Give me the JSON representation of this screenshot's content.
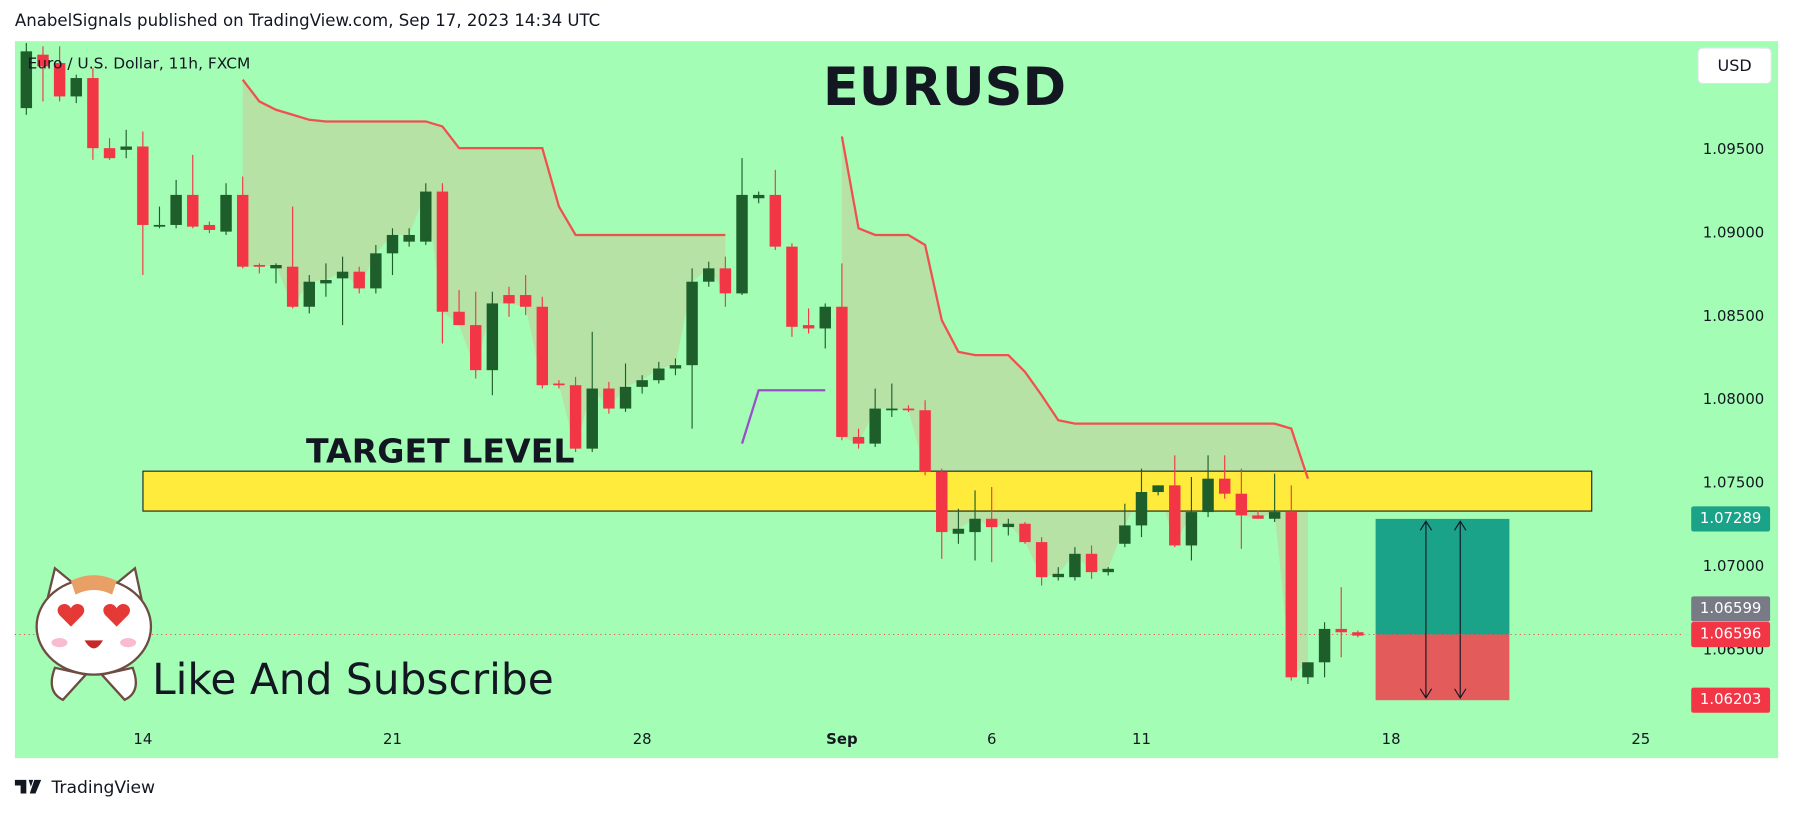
{
  "header": "AnabelSignals published on TradingView.com, Sep 17, 2023 14:34 UTC",
  "footer": "TradingView",
  "currency_button": "USD",
  "chart_data": {
    "type": "candlestick",
    "title": "EURUSD",
    "subtitle": "Euro / U.S. Dollar, 11h, FXCM",
    "annotation": "Like And Subscribe",
    "up_color": "#1e5e2b",
    "down_color": "#f23645",
    "categories": [
      null,
      null,
      null,
      null,
      null,
      null,
      null,
      "14",
      null,
      null,
      null,
      null,
      null,
      null,
      null,
      null,
      null,
      null,
      null,
      null,
      null,
      null,
      "21",
      null,
      null,
      null,
      null,
      null,
      null,
      null,
      null,
      null,
      null,
      null,
      null,
      null,
      null,
      "28",
      null,
      null,
      null,
      null,
      null,
      null,
      null,
      null,
      null,
      null,
      null,
      "Sep",
      null,
      null,
      null,
      null,
      null,
      null,
      null,
      null,
      "6",
      null,
      null,
      null,
      null,
      null,
      null,
      null,
      null,
      "11",
      null,
      null,
      null,
      null,
      null,
      null,
      null,
      null,
      null,
      null,
      null,
      null,
      null,
      null,
      "18",
      null,
      null,
      null,
      null,
      null,
      null,
      null,
      null,
      null,
      null,
      null,
      null,
      null,
      null,
      "25"
    ],
    "open": [
      1.0975,
      1.1007,
      1.1002,
      1.0982,
      1.0993,
      1.0951,
      1.095,
      1.0952,
      1.0904,
      1.0905,
      1.0923,
      1.0905,
      1.0901,
      1.0923,
      1.0881,
      1.0879,
      1.088,
      1.0856,
      1.087,
      1.0873,
      1.0877,
      1.0867,
      1.0888,
      1.0895,
      1.0895,
      1.0925,
      1.0853,
      1.0845,
      1.0818,
      1.0863,
      1.0863,
      1.0856,
      1.081,
      1.0809,
      1.0771,
      1.0807,
      1.0795,
      1.0808,
      1.0812,
      1.0819,
      1.0821,
      1.0871,
      1.0879,
      1.0864,
      1.0921,
      1.0923,
      1.0892,
      1.0845,
      1.0843,
      1.0856,
      1.0778,
      1.0774,
      1.0794,
      1.0795,
      1.0794,
      1.0757,
      1.072,
      1.0721,
      1.0729,
      1.0724,
      1.0726,
      1.0715,
      1.0694,
      1.0694,
      1.0708,
      1.0697,
      1.0714,
      1.0725,
      1.0745,
      1.0749,
      1.0713,
      1.0733,
      1.0753,
      1.0744,
      1.0731,
      1.0729,
      1.0733,
      1.0634,
      1.0643,
      1.0663,
      1.0661,
      null,
      null,
      null,
      null,
      null,
      null,
      null,
      null,
      null,
      null,
      null,
      null,
      null,
      null,
      null,
      null,
      null
    ],
    "high": [
      1.1014,
      1.1012,
      1.1012,
      1.0995,
      1.0999,
      1.0957,
      1.0962,
      1.0961,
      1.0916,
      1.0932,
      1.0947,
      1.0907,
      1.093,
      1.0934,
      1.0882,
      1.0882,
      1.0916,
      1.0875,
      1.0882,
      1.0886,
      1.088,
      1.0893,
      1.0903,
      1.0903,
      1.093,
      1.093,
      1.0866,
      1.0865,
      1.0865,
      1.0868,
      1.0875,
      1.0862,
      1.0812,
      1.0814,
      1.0841,
      1.0811,
      1.0822,
      1.0815,
      1.0823,
      1.0825,
      1.0879,
      1.0883,
      1.0886,
      1.0945,
      1.0925,
      1.0938,
      1.0894,
      1.0855,
      1.0858,
      1.0882,
      1.0783,
      1.0807,
      1.081,
      1.0797,
      1.08,
      1.0759,
      1.0735,
      1.0746,
      1.0748,
      1.0729,
      1.0727,
      1.0718,
      1.07,
      1.0712,
      1.0713,
      1.07,
      1.0738,
      1.0759,
      1.0749,
      1.0767,
      1.0754,
      1.0767,
      1.0767,
      1.0759,
      1.0734,
      1.0756,
      1.0749,
      1.0643,
      1.0667,
      1.0688,
      1.0662,
      null,
      null,
      null,
      null,
      null,
      null,
      null,
      null,
      null,
      null,
      null,
      null,
      null,
      null,
      null,
      null,
      null
    ],
    "low": [
      1.0971,
      1.0979,
      1.0979,
      1.0978,
      1.0944,
      1.0944,
      1.0945,
      1.0875,
      1.0903,
      1.0903,
      1.0903,
      1.09,
      1.0899,
      1.0879,
      1.0876,
      1.087,
      1.0855,
      1.0852,
      1.0862,
      1.0845,
      1.0864,
      1.0864,
      1.0875,
      1.0892,
      1.0893,
      1.0834,
      1.0845,
      1.0813,
      1.0803,
      1.085,
      1.0851,
      1.0807,
      1.0807,
      1.0769,
      1.0769,
      1.0792,
      1.0793,
      1.0804,
      1.081,
      1.0815,
      1.0783,
      1.0868,
      1.0856,
      1.0863,
      1.0918,
      1.089,
      1.0838,
      1.084,
      1.0831,
      1.0776,
      1.0771,
      1.0772,
      1.079,
      1.0793,
      1.0755,
      1.0705,
      1.0714,
      1.0704,
      1.0703,
      1.0719,
      1.0714,
      1.0689,
      1.0692,
      1.0692,
      1.0693,
      1.0695,
      1.0712,
      1.0718,
      1.0743,
      1.0712,
      1.0704,
      1.073,
      1.0741,
      1.0711,
      1.0729,
      1.0727,
      1.0632,
      1.063,
      1.0634,
      1.0646,
      1.0658,
      null,
      null,
      null,
      null,
      null,
      null,
      null,
      null,
      null,
      null,
      null,
      null,
      null,
      null,
      null,
      null,
      null
    ],
    "close": [
      1.1009,
      1.1,
      1.0982,
      1.0993,
      1.0951,
      1.0945,
      1.0952,
      1.0905,
      1.0905,
      1.0923,
      1.0904,
      1.0902,
      1.0923,
      1.088,
      1.088,
      1.0881,
      1.0856,
      1.0871,
      1.0872,
      1.0877,
      1.0867,
      1.0888,
      1.0899,
      1.0899,
      1.0925,
      1.0853,
      1.0845,
      1.0818,
      1.0858,
      1.0858,
      1.0856,
      1.0809,
      1.0809,
      1.0771,
      1.0807,
      1.0795,
      1.0808,
      1.0812,
      1.0819,
      1.0821,
      1.0871,
      1.0879,
      1.0864,
      1.0923,
      1.0923,
      1.0892,
      1.0844,
      1.0843,
      1.0856,
      1.0778,
      1.0774,
      1.0795,
      1.0795,
      1.0794,
      1.0757,
      1.0721,
      1.0723,
      1.0729,
      1.0724,
      1.0726,
      1.0715,
      1.0694,
      1.0696,
      1.0708,
      1.0697,
      1.0699,
      1.0725,
      1.0745,
      1.0749,
      1.0713,
      1.0733,
      1.0753,
      1.0744,
      1.0731,
      1.0729,
      1.0733,
      1.0634,
      1.0643,
      1.0663,
      1.0661,
      1.0659,
      null,
      null,
      null,
      null,
      null,
      null,
      null,
      null,
      null,
      null,
      null,
      null,
      null,
      null,
      null,
      null,
      null
    ],
    "trail": {
      "color": "#f05050",
      "values": [
        null,
        null,
        null,
        null,
        null,
        null,
        null,
        null,
        null,
        null,
        null,
        null,
        null,
        1.0992,
        1.0979,
        1.0974,
        1.0971,
        1.0968,
        1.0967,
        1.0967,
        1.0967,
        1.0967,
        1.0967,
        1.0967,
        1.0967,
        1.0964,
        1.0951,
        1.0951,
        1.0951,
        1.0951,
        1.0951,
        1.0951,
        1.0916,
        1.0899,
        1.0899,
        1.0899,
        1.0899,
        1.0899,
        1.0899,
        1.0899,
        1.0899,
        1.0899,
        1.0899,
        null,
        null,
        null,
        null,
        null,
        null,
        1.0958,
        1.0903,
        1.0899,
        1.0899,
        1.0899,
        1.0893,
        1.0848,
        1.0829,
        1.0827,
        1.0827,
        1.0827,
        1.0817,
        1.0803,
        1.0788,
        1.0786,
        1.0786,
        1.0786,
        1.0786,
        1.0786,
        1.0786,
        1.0786,
        1.0786,
        1.0786,
        1.0786,
        1.0786,
        1.0786,
        1.0786,
        1.0783,
        1.0753,
        null,
        null,
        null,
        null,
        null,
        null,
        null,
        null,
        null,
        null,
        null,
        null,
        null,
        null,
        null,
        null,
        null,
        null,
        null,
        null
      ]
    },
    "signal": {
      "color": "#9c4dcc",
      "values": [
        null,
        null,
        null,
        null,
        null,
        null,
        null,
        null,
        null,
        null,
        null,
        null,
        null,
        null,
        null,
        null,
        null,
        null,
        null,
        null,
        null,
        null,
        null,
        null,
        null,
        null,
        null,
        null,
        null,
        null,
        null,
        null,
        null,
        null,
        null,
        null,
        null,
        null,
        null,
        null,
        null,
        null,
        null,
        1.0774,
        1.0806,
        1.0806,
        1.0806,
        1.0806,
        1.0806,
        null,
        null,
        null,
        null,
        null,
        null,
        null,
        null,
        null,
        null,
        null,
        null,
        null,
        null,
        null,
        null,
        null,
        null,
        null,
        null,
        null,
        null,
        null,
        null,
        null,
        null,
        null,
        null,
        null,
        null,
        null,
        null,
        null,
        null,
        null,
        null,
        null,
        null,
        null,
        null,
        null,
        null,
        null,
        null,
        null,
        null,
        null,
        null,
        null
      ]
    },
    "target_zone": {
      "label": "TARGET LEVEL",
      "high": 1.07575,
      "low": 1.07336,
      "color": "#ffeb3b"
    },
    "position": {
      "target": {
        "value": 1.07289,
        "label": "1.07289",
        "color": "#1aa388"
      },
      "entry": {
        "value": 1.06596,
        "label": "1.06596",
        "color": "#f23645"
      },
      "stop": {
        "value": 1.06203,
        "label": "1.06203",
        "color": "#f23645"
      }
    },
    "last_price": {
      "value": 1.06599,
      "label": "1.06599",
      "color": "#787b86"
    },
    "ylim": [
      1.05856,
      1.10151
    ],
    "yticks": [
      {
        "value": 1.065,
        "label": "1.06500"
      },
      {
        "value": 1.07,
        "label": "1.07000"
      },
      {
        "value": 1.075,
        "label": "1.07500"
      },
      {
        "value": 1.08,
        "label": "1.08000"
      },
      {
        "value": 1.085,
        "label": "1.08500"
      },
      {
        "value": 1.09,
        "label": "1.09000"
      },
      {
        "value": 1.095,
        "label": "1.09500"
      }
    ],
    "grid": false
  }
}
